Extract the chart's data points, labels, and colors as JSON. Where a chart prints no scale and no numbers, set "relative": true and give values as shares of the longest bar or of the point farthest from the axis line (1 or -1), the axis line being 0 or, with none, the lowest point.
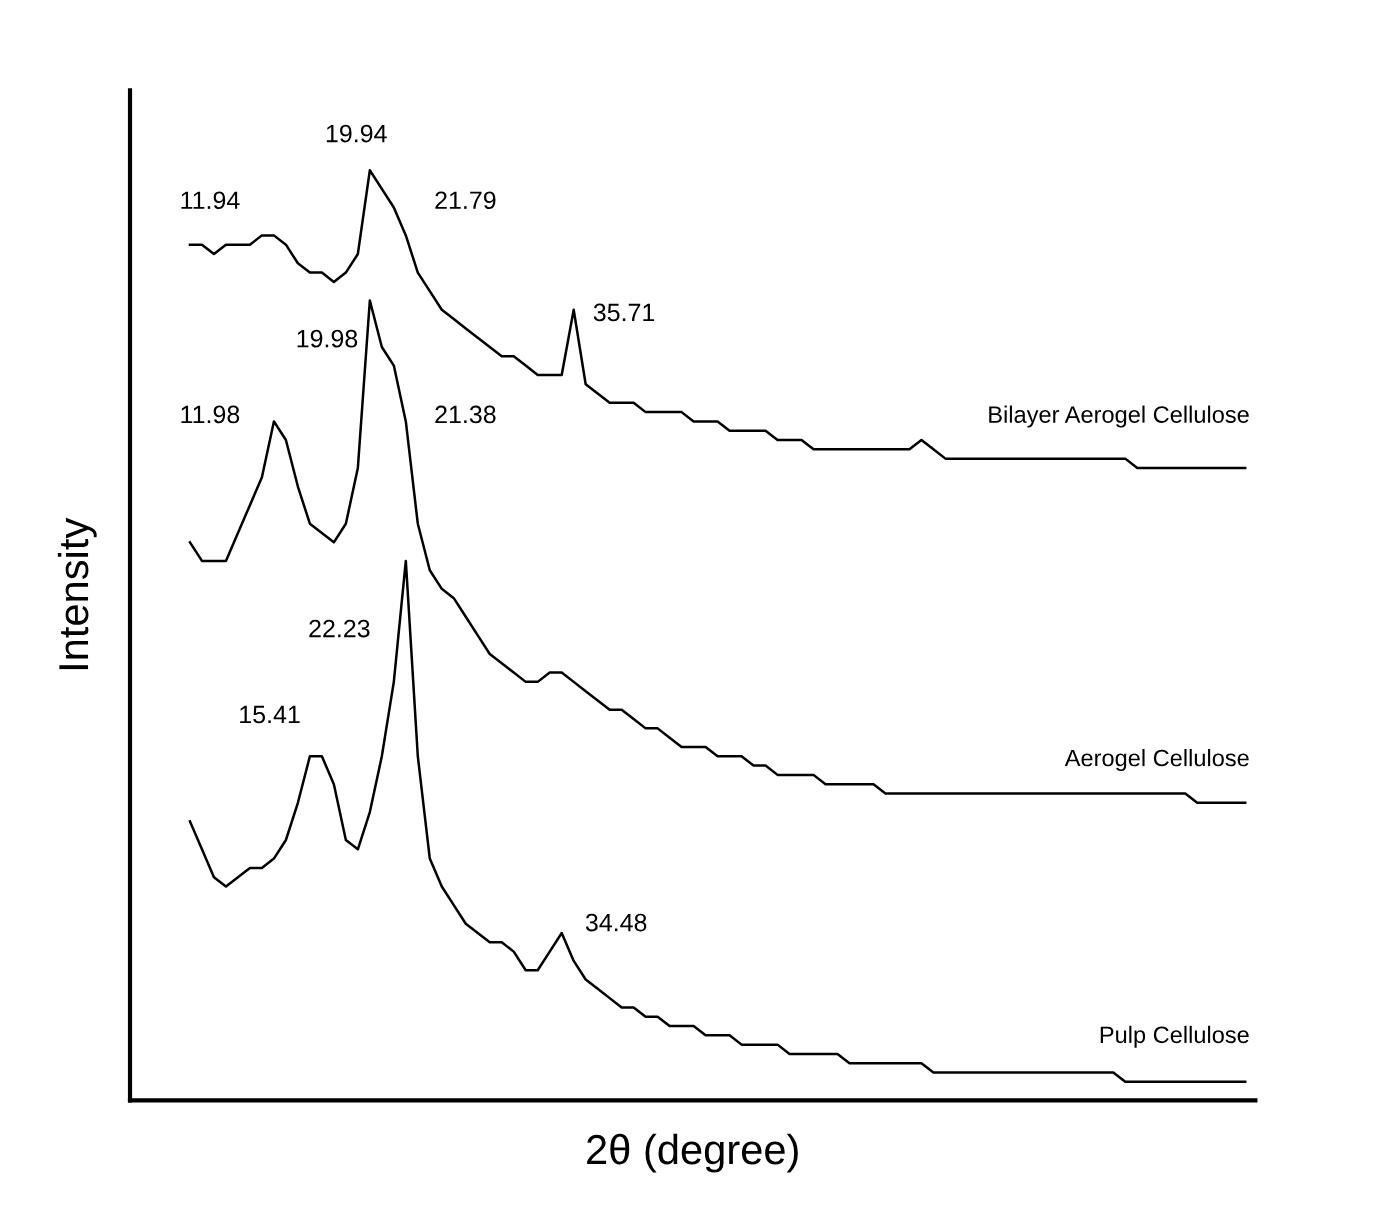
{
  "chart_data": {
    "type": "line",
    "relative": true,
    "xlabel": "2θ (degree)",
    "ylabel": "Intensity",
    "categories": [
      null,
      null,
      null,
      null,
      null,
      null,
      null,
      null,
      null,
      null,
      null,
      null,
      null,
      null,
      null,
      null,
      null,
      null,
      null,
      null,
      null,
      null,
      null,
      null,
      null,
      null,
      null,
      null,
      null,
      null,
      null,
      null,
      null,
      null,
      null,
      null,
      null,
      null,
      null,
      null,
      null,
      null,
      null,
      null,
      null,
      null,
      null,
      null,
      null,
      null,
      null,
      null,
      null,
      null,
      null,
      null,
      null,
      null,
      null,
      null,
      null,
      null,
      null,
      null,
      null,
      null,
      null,
      null,
      null,
      null,
      null,
      null,
      null,
      null,
      null,
      null,
      null,
      null,
      null,
      null,
      null,
      null,
      null,
      null,
      null,
      null,
      null,
      null,
      null
    ],
    "series": [
      {
        "name": "Bilayer Aerogel Cellulose",
        "color": "#000000",
        "values": [
          0.92,
          0.92,
          0.91,
          0.92,
          0.92,
          0.92,
          0.93,
          0.93,
          0.92,
          0.9,
          0.89,
          0.89,
          0.88,
          0.89,
          0.91,
          1.0,
          0.98,
          0.96,
          0.93,
          0.89,
          0.87,
          0.85,
          0.84,
          0.83,
          0.82,
          0.81,
          0.8,
          0.8,
          0.79,
          0.78,
          0.78,
          0.78,
          0.85,
          0.77,
          0.76,
          0.75,
          0.75,
          0.75,
          0.74,
          0.74,
          0.74,
          0.74,
          0.73,
          0.73,
          0.73,
          0.72,
          0.72,
          0.72,
          0.72,
          0.71,
          0.71,
          0.71,
          0.7,
          0.7,
          0.7,
          0.7,
          0.7,
          0.7,
          0.7,
          0.7,
          0.7,
          0.71,
          0.7,
          0.69,
          0.69,
          0.69,
          0.69,
          0.69,
          0.69,
          0.69,
          0.69,
          0.69,
          0.69,
          0.69,
          0.69,
          0.69,
          0.69,
          0.69,
          0.69,
          0.68,
          0.68,
          0.68,
          0.68,
          0.68,
          0.68,
          0.68,
          0.68,
          0.68,
          0.68
        ]
      },
      {
        "name": "Aerogel Cellulose",
        "color": "#000000",
        "values": [
          0.6,
          0.58,
          0.58,
          0.58,
          0.61,
          0.64,
          0.67,
          0.73,
          0.71,
          0.66,
          0.62,
          0.61,
          0.6,
          0.62,
          0.68,
          0.86,
          0.81,
          0.79,
          0.73,
          0.62,
          0.57,
          0.55,
          0.54,
          0.52,
          0.5,
          0.48,
          0.47,
          0.46,
          0.45,
          0.45,
          0.46,
          0.46,
          0.45,
          0.44,
          0.43,
          0.42,
          0.42,
          0.41,
          0.4,
          0.4,
          0.39,
          0.38,
          0.38,
          0.38,
          0.37,
          0.37,
          0.37,
          0.36,
          0.36,
          0.35,
          0.35,
          0.35,
          0.35,
          0.34,
          0.34,
          0.34,
          0.34,
          0.34,
          0.33,
          0.33,
          0.33,
          0.33,
          0.33,
          0.33,
          0.33,
          0.33,
          0.33,
          0.33,
          0.33,
          0.33,
          0.33,
          0.33,
          0.33,
          0.33,
          0.33,
          0.33,
          0.33,
          0.33,
          0.33,
          0.33,
          0.33,
          0.33,
          0.33,
          0.33,
          0.32,
          0.32,
          0.32,
          0.32,
          0.32
        ]
      },
      {
        "name": "Pulp Cellulose",
        "color": "#000000",
        "values": [
          0.3,
          0.27,
          0.24,
          0.23,
          0.24,
          0.25,
          0.25,
          0.26,
          0.28,
          0.32,
          0.37,
          0.37,
          0.34,
          0.28,
          0.27,
          0.31,
          0.37,
          0.45,
          0.58,
          0.37,
          0.26,
          0.23,
          0.21,
          0.19,
          0.18,
          0.17,
          0.17,
          0.16,
          0.14,
          0.14,
          0.16,
          0.18,
          0.15,
          0.13,
          0.12,
          0.11,
          0.1,
          0.1,
          0.09,
          0.09,
          0.08,
          0.08,
          0.08,
          0.07,
          0.07,
          0.07,
          0.06,
          0.06,
          0.06,
          0.06,
          0.05,
          0.05,
          0.05,
          0.05,
          0.05,
          0.04,
          0.04,
          0.04,
          0.04,
          0.04,
          0.04,
          0.04,
          0.03,
          0.03,
          0.03,
          0.03,
          0.03,
          0.03,
          0.03,
          0.03,
          0.03,
          0.03,
          0.03,
          0.03,
          0.03,
          0.03,
          0.03,
          0.03,
          0.02,
          0.02,
          0.02,
          0.02,
          0.02,
          0.02,
          0.02,
          0.02,
          0.02,
          0.02,
          0.02
        ]
      }
    ],
    "annotations": [
      "11.94",
      "19.94",
      "21.79",
      "35.71",
      "19.98",
      "11.98",
      "21.38",
      "22.23",
      "15.41",
      "34.48"
    ],
    "marker": "none",
    "line_style": "solid"
  }
}
